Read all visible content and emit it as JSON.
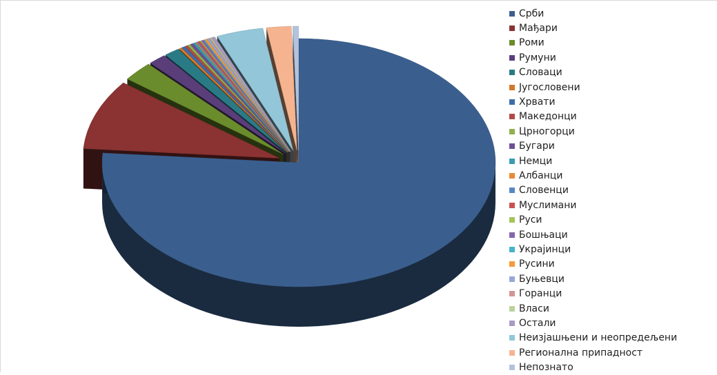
{
  "chart_data": {
    "type": "pie",
    "style": "3d-exploded",
    "legend_position": "right",
    "series": [
      {
        "name": "Срби",
        "value": 83.3,
        "color": "#3a5f8f"
      },
      {
        "name": "Мађари",
        "value": 10.0,
        "color": "#8b3232"
      },
      {
        "name": "Роми",
        "value": 2.8,
        "color": "#6b8c2c"
      },
      {
        "name": "Румуни",
        "value": 1.6,
        "color": "#5a3e7a"
      },
      {
        "name": "Словаци",
        "value": 1.4,
        "color": "#2a7a86"
      },
      {
        "name": "Југословени",
        "value": 0.25,
        "color": "#d2782a"
      },
      {
        "name": "Хрвати",
        "value": 0.3,
        "color": "#3f6ca8"
      },
      {
        "name": "Македонци",
        "value": 0.25,
        "color": "#b04a48"
      },
      {
        "name": "Црногорци",
        "value": 0.25,
        "color": "#8fb04a"
      },
      {
        "name": "Бугари",
        "value": 0.25,
        "color": "#6e4f96"
      },
      {
        "name": "Немци",
        "value": 0.25,
        "color": "#3a9bb0"
      },
      {
        "name": "Албанци",
        "value": 0.1,
        "color": "#ea8a36"
      },
      {
        "name": "Словенци",
        "value": 0.1,
        "color": "#5a86c4"
      },
      {
        "name": "Муслимани",
        "value": 0.2,
        "color": "#c9524f"
      },
      {
        "name": "Руси",
        "value": 0.1,
        "color": "#a5c45a"
      },
      {
        "name": "Бошњаци",
        "value": 0.2,
        "color": "#8466ac"
      },
      {
        "name": "Украјинци",
        "value": 0.1,
        "color": "#46b4c8"
      },
      {
        "name": "Русини",
        "value": 0.2,
        "color": "#f59a3a"
      },
      {
        "name": "Буњевци",
        "value": 0.2,
        "color": "#95a9d4"
      },
      {
        "name": "Горанци",
        "value": 0.1,
        "color": "#d49592"
      },
      {
        "name": "Власи",
        "value": 0.1,
        "color": "#b9d39a"
      },
      {
        "name": "Остали",
        "value": 0.3,
        "color": "#a99bc0"
      },
      {
        "name": "Неизјашњени и неопредељени",
        "value": 4.2,
        "color": "#92c6d8"
      },
      {
        "name": "Регионална припадност",
        "value": 2.2,
        "color": "#f5b48f"
      },
      {
        "name": "Непознато",
        "value": 0.5,
        "color": "#b3c3dd"
      }
    ]
  }
}
